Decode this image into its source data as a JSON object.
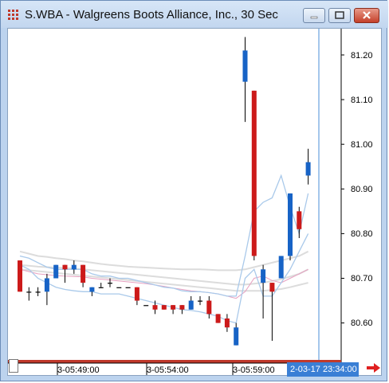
{
  "window": {
    "title": "S.WBA - Walgreens Boots Alliance, Inc., 30 Sec"
  },
  "axis": {
    "price_ticks": [
      "81.20",
      "81.10",
      "81.00",
      "80.90",
      "80.80",
      "80.70",
      "80.60"
    ],
    "time_ticks": [
      "3-05:49:00",
      "3-05:54:00",
      "3-05:59:00"
    ],
    "cursor_time": "2-03-17 23:34:00"
  },
  "colors": {
    "up": "#1763c6",
    "down": "#cc1a1a",
    "flat": "#000000",
    "cursor_line": "#4a8fd8",
    "band_blue": "#a9c9ea",
    "band_pink": "#e7a0c0",
    "band_gray": "#dcdcdc",
    "scroll_arrow": "#e02020"
  },
  "chart_data": {
    "type": "candlestick",
    "ylim": [
      80.55,
      81.27
    ],
    "candles": [
      {
        "o": 80.74,
        "h": 80.74,
        "l": 80.67,
        "c": 80.67
      },
      {
        "o": 80.67,
        "h": 80.68,
        "l": 80.65,
        "c": 80.67
      },
      {
        "o": 80.67,
        "h": 80.68,
        "l": 80.66,
        "c": 80.67
      },
      {
        "o": 80.67,
        "h": 80.71,
        "l": 80.64,
        "c": 80.7
      },
      {
        "o": 80.7,
        "h": 80.73,
        "l": 80.7,
        "c": 80.73
      },
      {
        "o": 80.73,
        "h": 80.73,
        "l": 80.69,
        "c": 80.72
      },
      {
        "o": 80.72,
        "h": 80.74,
        "l": 80.71,
        "c": 80.73
      },
      {
        "o": 80.73,
        "h": 80.73,
        "l": 80.68,
        "c": 80.69
      },
      {
        "o": 80.67,
        "h": 80.68,
        "l": 80.66,
        "c": 80.68
      },
      {
        "o": 80.68,
        "h": 80.69,
        "l": 80.68,
        "c": 80.68
      },
      {
        "o": 80.69,
        "h": 80.7,
        "l": 80.68,
        "c": 80.69
      },
      {
        "o": 80.68,
        "h": 80.68,
        "l": 80.68,
        "c": 80.68
      },
      {
        "o": 80.68,
        "h": 80.68,
        "l": 80.68,
        "c": 80.68
      },
      {
        "o": 80.68,
        "h": 80.68,
        "l": 80.64,
        "c": 80.65
      },
      {
        "o": 80.64,
        "h": 80.64,
        "l": 80.64,
        "c": 80.64
      },
      {
        "o": 80.64,
        "h": 80.65,
        "l": 80.62,
        "c": 80.63
      },
      {
        "o": 80.64,
        "h": 80.64,
        "l": 80.63,
        "c": 80.63
      },
      {
        "o": 80.64,
        "h": 80.64,
        "l": 80.62,
        "c": 80.63
      },
      {
        "o": 80.64,
        "h": 80.64,
        "l": 80.62,
        "c": 80.63
      },
      {
        "o": 80.63,
        "h": 80.66,
        "l": 80.63,
        "c": 80.65
      },
      {
        "o": 80.65,
        "h": 80.66,
        "l": 80.64,
        "c": 80.65
      },
      {
        "o": 80.65,
        "h": 80.66,
        "l": 80.61,
        "c": 80.62
      },
      {
        "o": 80.62,
        "h": 80.62,
        "l": 80.6,
        "c": 80.6
      },
      {
        "o": 80.61,
        "h": 80.62,
        "l": 80.58,
        "c": 80.59
      },
      {
        "o": 80.55,
        "h": 80.6,
        "l": 80.55,
        "c": 80.59
      },
      {
        "o": 81.14,
        "h": 81.24,
        "l": 81.05,
        "c": 81.21
      },
      {
        "o": 81.12,
        "h": 81.12,
        "l": 80.74,
        "c": 80.75
      },
      {
        "o": 80.69,
        "h": 80.73,
        "l": 80.61,
        "c": 80.72
      },
      {
        "o": 80.69,
        "h": 80.69,
        "l": 80.56,
        "c": 80.67
      },
      {
        "o": 80.7,
        "h": 80.75,
        "l": 80.7,
        "c": 80.75
      },
      {
        "o": 80.75,
        "h": 80.89,
        "l": 80.74,
        "c": 80.89
      },
      {
        "o": 80.85,
        "h": 80.86,
        "l": 80.79,
        "c": 80.81
      },
      {
        "o": 80.93,
        "h": 80.99,
        "l": 80.91,
        "c": 80.96
      }
    ],
    "bands": {
      "gray_upper": [
        80.76,
        80.755,
        80.75,
        80.748,
        80.745,
        80.743,
        80.74,
        80.738,
        80.735,
        80.732,
        80.73,
        80.728,
        80.726,
        80.725,
        80.724,
        80.723,
        80.722,
        80.721,
        80.72,
        80.72,
        80.72,
        80.719,
        80.718,
        80.718,
        80.718,
        80.72,
        80.725,
        80.73,
        80.735,
        80.74,
        80.745,
        80.75,
        80.76
      ],
      "gray_lower": [
        80.73,
        80.728,
        80.726,
        80.725,
        80.724,
        80.723,
        80.722,
        80.72,
        80.718,
        80.716,
        80.714,
        80.712,
        80.71,
        80.708,
        80.706,
        80.704,
        80.702,
        80.7,
        80.698,
        80.696,
        80.694,
        80.692,
        80.69,
        80.688,
        80.686,
        80.686,
        80.688,
        80.69,
        80.694,
        80.698,
        80.704,
        80.71,
        80.72
      ],
      "gray_low2": [
        80.72,
        80.718,
        80.716,
        80.714,
        80.712,
        80.71,
        80.708,
        80.706,
        80.704,
        80.702,
        80.7,
        80.698,
        80.696,
        80.694,
        80.692,
        80.69,
        80.688,
        80.686,
        80.684,
        80.682,
        80.68,
        80.678,
        80.676,
        80.674,
        80.672,
        80.672,
        80.672,
        80.672,
        80.674,
        80.676,
        80.68,
        80.685,
        80.69
      ],
      "pink": [
        80.72,
        80.715,
        80.71,
        80.708,
        80.706,
        80.705,
        80.704,
        80.703,
        80.7,
        80.698,
        80.696,
        80.694,
        80.692,
        80.69,
        80.688,
        80.685,
        80.682,
        80.678,
        80.675,
        80.672,
        80.67,
        80.668,
        80.665,
        80.66,
        80.655,
        80.67,
        80.7,
        80.705,
        80.695,
        80.69,
        80.7,
        80.71,
        80.72
      ],
      "blue_upper": [
        80.75,
        80.745,
        80.735,
        80.725,
        80.72,
        80.72,
        80.72,
        80.72,
        80.71,
        80.705,
        80.705,
        80.7,
        80.7,
        80.695,
        80.69,
        80.685,
        80.68,
        80.678,
        80.672,
        80.67,
        80.67,
        80.668,
        80.665,
        80.66,
        80.66,
        80.75,
        80.85,
        80.87,
        80.88,
        80.93,
        80.86,
        80.8,
        80.89
      ],
      "blue_lower": [
        80.73,
        80.72,
        80.7,
        80.69,
        80.68,
        80.675,
        80.672,
        80.67,
        80.67,
        80.665,
        80.665,
        80.665,
        80.66,
        80.655,
        80.65,
        80.645,
        80.64,
        80.635,
        80.63,
        80.628,
        80.625,
        80.62,
        80.615,
        80.605,
        80.6,
        80.7,
        80.72,
        80.66,
        80.66,
        80.69,
        80.72,
        80.76,
        80.8
      ]
    }
  }
}
